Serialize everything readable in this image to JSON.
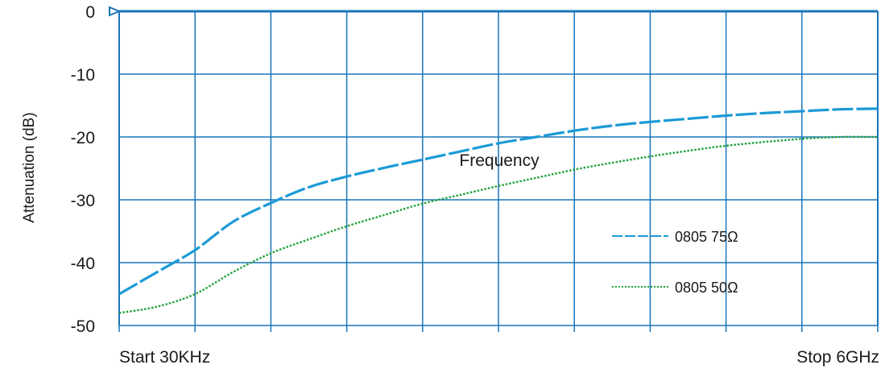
{
  "chart_data": {
    "type": "line",
    "ylabel": "Attenuation (dB)",
    "plot_label": "Frequency",
    "x_start_label": "Start 30KHz",
    "x_stop_label": "Stop 6GHz",
    "ylim": [
      -50,
      0
    ],
    "yticks": [
      "0",
      "-10",
      "-20",
      "-30",
      "-40",
      "-50"
    ],
    "ytick_values": [
      0,
      -10,
      -20,
      -30,
      -40,
      -50
    ],
    "x_divisions": 10,
    "grid": true,
    "legend_position": "right",
    "colors": {
      "grid": "#1a75b8",
      "series_75": "#1b9ad6",
      "series_50": "#1fa23c"
    },
    "x": [
      0,
      0.5,
      1,
      1.5,
      2,
      2.5,
      3,
      3.5,
      4,
      4.5,
      5,
      5.5,
      6,
      6.5,
      7,
      7.5,
      8,
      8.5,
      9,
      9.5,
      10
    ],
    "series": [
      {
        "name": "0805 75Ω",
        "style": "dashed",
        "values": [
          -45,
          -41.5,
          -38,
          -33.5,
          -30.5,
          -28,
          -26.3,
          -24.9,
          -23.6,
          -22.3,
          -21,
          -20,
          -19,
          -18.2,
          -17.6,
          -17.1,
          -16.6,
          -16.2,
          -15.9,
          -15.6,
          -15.5
        ]
      },
      {
        "name": "0805 50Ω",
        "style": "dotted",
        "values": [
          -48,
          -47,
          -45,
          -41.5,
          -38.5,
          -36.3,
          -34.2,
          -32.4,
          -30.6,
          -29.2,
          -27.8,
          -26.5,
          -25.2,
          -24.1,
          -23.1,
          -22.2,
          -21.4,
          -20.8,
          -20.3,
          -20,
          -20
        ]
      }
    ]
  }
}
